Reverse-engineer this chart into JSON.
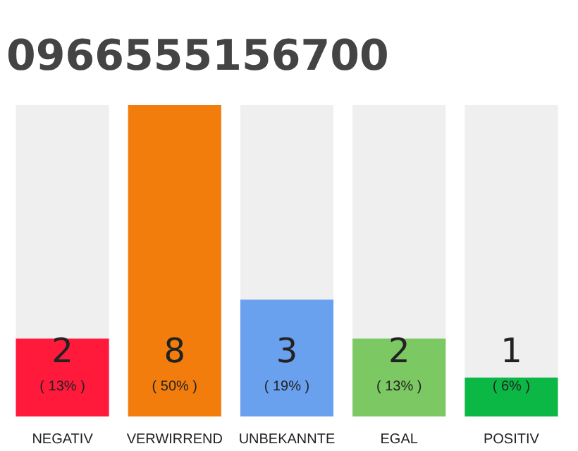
{
  "chart_data": {
    "type": "bar",
    "title": "0966555156700",
    "categories": [
      "NEGATIV",
      "VERWIRREND",
      "UNBEKANNTE",
      "EGAL",
      "POSITIV"
    ],
    "values": [
      2,
      8,
      3,
      2,
      1
    ],
    "colors": [
      "#ff1a3c",
      "#f27d0c",
      "#6aa1ef",
      "#7cc863",
      "#0cb845"
    ],
    "data_labels": true,
    "annotations": [
      "( 13% )",
      "( 50% )",
      "( 19% )",
      "( 13% )",
      "( 6% )"
    ]
  }
}
